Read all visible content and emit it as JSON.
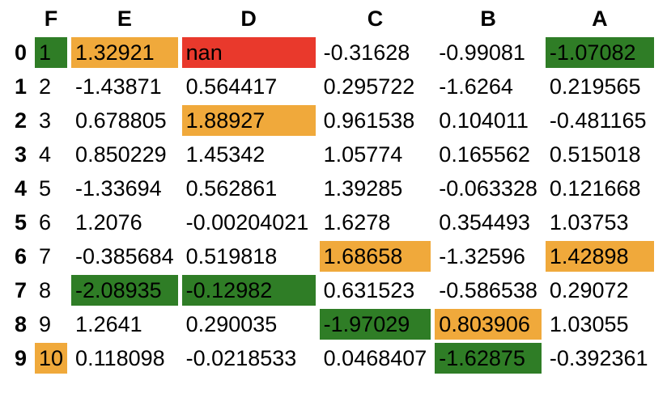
{
  "highlight_colors": {
    "max": "#f0a93b",
    "min": "#2f7d26",
    "null": "#e9392c"
  },
  "table": {
    "corner_label": "",
    "columns": [
      "F",
      "E",
      "D",
      "C",
      "B",
      "A"
    ],
    "rows": [
      {
        "index": "0",
        "cells": [
          {
            "value": "1",
            "highlight": "min"
          },
          {
            "value": "1.32921",
            "highlight": "max"
          },
          {
            "value": "nan",
            "highlight": "null"
          },
          {
            "value": "-0.31628",
            "highlight": null
          },
          {
            "value": "-0.99081",
            "highlight": null
          },
          {
            "value": "-1.07082",
            "highlight": "min"
          }
        ]
      },
      {
        "index": "1",
        "cells": [
          {
            "value": "2",
            "highlight": null
          },
          {
            "value": "-1.43871",
            "highlight": null
          },
          {
            "value": "0.564417",
            "highlight": null
          },
          {
            "value": "0.295722",
            "highlight": null
          },
          {
            "value": "-1.6264",
            "highlight": null
          },
          {
            "value": "0.219565",
            "highlight": null
          }
        ]
      },
      {
        "index": "2",
        "cells": [
          {
            "value": "3",
            "highlight": null
          },
          {
            "value": "0.678805",
            "highlight": null
          },
          {
            "value": "1.88927",
            "highlight": "max"
          },
          {
            "value": "0.961538",
            "highlight": null
          },
          {
            "value": "0.104011",
            "highlight": null
          },
          {
            "value": "-0.481165",
            "highlight": null
          }
        ]
      },
      {
        "index": "3",
        "cells": [
          {
            "value": "4",
            "highlight": null
          },
          {
            "value": "0.850229",
            "highlight": null
          },
          {
            "value": "1.45342",
            "highlight": null
          },
          {
            "value": "1.05774",
            "highlight": null
          },
          {
            "value": "0.165562",
            "highlight": null
          },
          {
            "value": "0.515018",
            "highlight": null
          }
        ]
      },
      {
        "index": "4",
        "cells": [
          {
            "value": "5",
            "highlight": null
          },
          {
            "value": "-1.33694",
            "highlight": null
          },
          {
            "value": "0.562861",
            "highlight": null
          },
          {
            "value": "1.39285",
            "highlight": null
          },
          {
            "value": "-0.063328",
            "highlight": null
          },
          {
            "value": "0.121668",
            "highlight": null
          }
        ]
      },
      {
        "index": "5",
        "cells": [
          {
            "value": "6",
            "highlight": null
          },
          {
            "value": "1.2076",
            "highlight": null
          },
          {
            "value": "-0.00204021",
            "highlight": null
          },
          {
            "value": "1.6278",
            "highlight": null
          },
          {
            "value": "0.354493",
            "highlight": null
          },
          {
            "value": "1.03753",
            "highlight": null
          }
        ]
      },
      {
        "index": "6",
        "cells": [
          {
            "value": "7",
            "highlight": null
          },
          {
            "value": "-0.385684",
            "highlight": null
          },
          {
            "value": "0.519818",
            "highlight": null
          },
          {
            "value": "1.68658",
            "highlight": "max"
          },
          {
            "value": "-1.32596",
            "highlight": null
          },
          {
            "value": "1.42898",
            "highlight": "max"
          }
        ]
      },
      {
        "index": "7",
        "cells": [
          {
            "value": "8",
            "highlight": null
          },
          {
            "value": "-2.08935",
            "highlight": "min"
          },
          {
            "value": "-0.12982",
            "highlight": "min"
          },
          {
            "value": "0.631523",
            "highlight": null
          },
          {
            "value": "-0.586538",
            "highlight": null
          },
          {
            "value": "0.29072",
            "highlight": null
          }
        ]
      },
      {
        "index": "8",
        "cells": [
          {
            "value": "9",
            "highlight": null
          },
          {
            "value": "1.2641",
            "highlight": null
          },
          {
            "value": "0.290035",
            "highlight": null
          },
          {
            "value": "-1.97029",
            "highlight": "min"
          },
          {
            "value": "0.803906",
            "highlight": "max"
          },
          {
            "value": "1.03055",
            "highlight": null
          }
        ]
      },
      {
        "index": "9",
        "cells": [
          {
            "value": "10",
            "highlight": "max"
          },
          {
            "value": "0.118098",
            "highlight": null
          },
          {
            "value": "-0.0218533",
            "highlight": null
          },
          {
            "value": "0.0468407",
            "highlight": null
          },
          {
            "value": "-1.62875",
            "highlight": "min"
          },
          {
            "value": "-0.392361",
            "highlight": null
          }
        ]
      }
    ]
  }
}
